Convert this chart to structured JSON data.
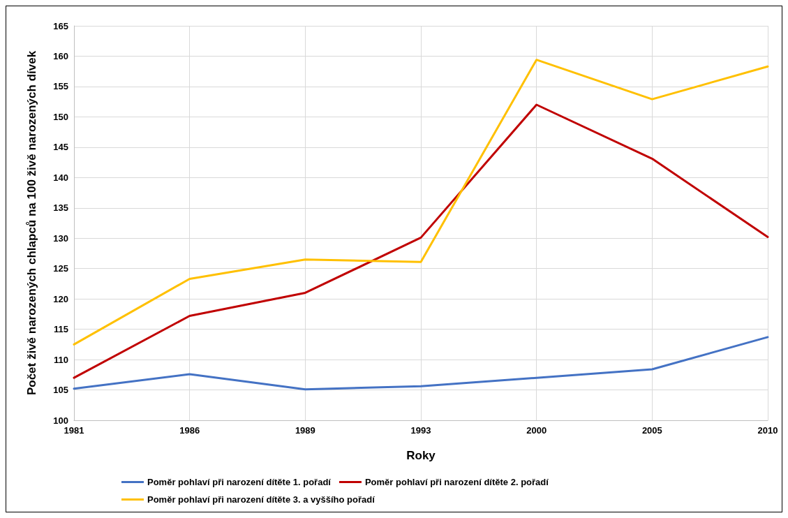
{
  "chart_data": {
    "type": "line",
    "xlabel": "Roky",
    "ylabel": "Počet živě narozených chlapců na 100 živě narozených dívek",
    "categories": [
      "1981",
      "1986",
      "1989",
      "1993",
      "2000",
      "2005",
      "2010"
    ],
    "ylim": [
      100,
      165
    ],
    "yticks": [
      100,
      105,
      110,
      115,
      120,
      125,
      130,
      135,
      140,
      145,
      150,
      155,
      160,
      165
    ],
    "grid": true,
    "legend": "bottom",
    "marker": "none",
    "line_style": "solid",
    "series": [
      {
        "name": "Poměr pohlaví při narození dítěte 1. pořadí",
        "color": "#4472c4",
        "values": [
          105.2,
          107.6,
          105.1,
          105.6,
          107.0,
          108.4,
          113.7
        ]
      },
      {
        "name": "Poměr pohlaví při narození dítěte 2. pořadí",
        "color": "#c00000",
        "values": [
          107.0,
          117.2,
          121.0,
          130.1,
          152.0,
          143.1,
          130.2
        ]
      },
      {
        "name": "Poměr pohlaví při narození dítěte 3. a vyššího pořadí",
        "color": "#ffc000",
        "values": [
          112.5,
          123.3,
          126.5,
          126.1,
          159.4,
          152.9,
          158.3
        ]
      }
    ]
  }
}
